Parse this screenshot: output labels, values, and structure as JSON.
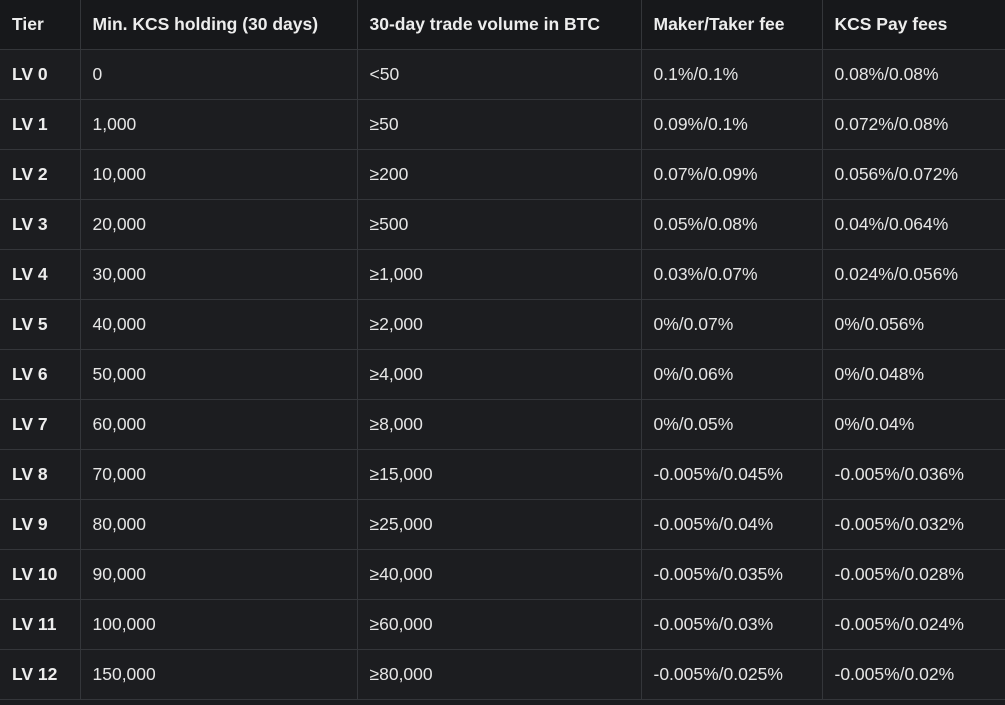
{
  "table": {
    "headers": [
      "Tier",
      "Min. KCS holding (30 days)",
      "30-day trade volume in BTC",
      "Maker/Taker fee",
      "KCS Pay fees"
    ],
    "rows": [
      [
        "LV 0",
        "0",
        "<50",
        "0.1%/0.1%",
        "0.08%/0.08%"
      ],
      [
        "LV 1",
        "1,000",
        "≥50",
        "0.09%/0.1%",
        "0.072%/0.08%"
      ],
      [
        "LV 2",
        "10,000",
        "≥200",
        "0.07%/0.09%",
        "0.056%/0.072%"
      ],
      [
        "LV 3",
        "20,000",
        "≥500",
        "0.05%/0.08%",
        "0.04%/0.064%"
      ],
      [
        "LV 4",
        "30,000",
        "≥1,000",
        "0.03%/0.07%",
        "0.024%/0.056%"
      ],
      [
        "LV 5",
        "40,000",
        "≥2,000",
        "0%/0.07%",
        "0%/0.056%"
      ],
      [
        "LV 6",
        "50,000",
        "≥4,000",
        "0%/0.06%",
        "0%/0.048%"
      ],
      [
        "LV 7",
        "60,000",
        "≥8,000",
        "0%/0.05%",
        "0%/0.04%"
      ],
      [
        "LV 8",
        "70,000",
        "≥15,000",
        "-0.005%/0.045%",
        "-0.005%/0.036%"
      ],
      [
        "LV 9",
        "80,000",
        "≥25,000",
        "-0.005%/0.04%",
        "-0.005%/0.032%"
      ],
      [
        "LV 10",
        "90,000",
        "≥40,000",
        "-0.005%/0.035%",
        "-0.005%/0.028%"
      ],
      [
        "LV 11",
        "100,000",
        "≥60,000",
        "-0.005%/0.03%",
        "-0.005%/0.024%"
      ],
      [
        "LV 12",
        "150,000",
        "≥80,000",
        "-0.005%/0.025%",
        "-0.005%/0.02%"
      ]
    ]
  }
}
